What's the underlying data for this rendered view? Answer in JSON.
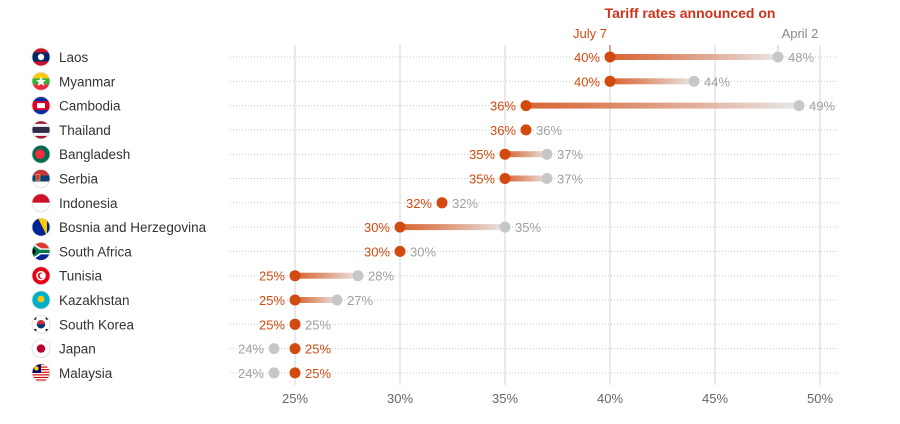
{
  "chart_data": {
    "type": "dot-plot",
    "title": "Tariff rates announced on",
    "series": [
      {
        "name": "July 7",
        "color": "#d24a0f"
      },
      {
        "name": "April 2",
        "color": "#c7c7c7"
      }
    ],
    "xlim": [
      20,
      52
    ],
    "xticks": [
      25,
      30,
      35,
      40,
      45,
      50
    ],
    "xtick_labels": [
      "25%",
      "30%",
      "35%",
      "40%",
      "45%",
      "50%"
    ],
    "rows": [
      {
        "country": "Laos",
        "flag": "laos-flag",
        "july7": 40,
        "april2": 48,
        "july7_label": "40%",
        "april2_label": "48%"
      },
      {
        "country": "Myanmar",
        "flag": "myanmar-flag",
        "july7": 40,
        "april2": 44,
        "july7_label": "40%",
        "april2_label": "44%"
      },
      {
        "country": "Cambodia",
        "flag": "cambodia-flag",
        "july7": 36,
        "april2": 49,
        "july7_label": "36%",
        "april2_label": "49%"
      },
      {
        "country": "Thailand",
        "flag": "thailand-flag",
        "july7": 36,
        "april2": 36,
        "july7_label": "36%",
        "april2_label": "36%"
      },
      {
        "country": "Bangladesh",
        "flag": "bangladesh-flag",
        "july7": 35,
        "april2": 37,
        "july7_label": "35%",
        "april2_label": "37%"
      },
      {
        "country": "Serbia",
        "flag": "serbia-flag",
        "july7": 35,
        "april2": 37,
        "july7_label": "35%",
        "april2_label": "37%"
      },
      {
        "country": "Indonesia",
        "flag": "indonesia-flag",
        "july7": 32,
        "april2": 32,
        "july7_label": "32%",
        "april2_label": "32%"
      },
      {
        "country": "Bosnia and Herzegovina",
        "flag": "bosnia-flag",
        "july7": 30,
        "april2": 35,
        "july7_label": "30%",
        "april2_label": "35%"
      },
      {
        "country": "South Africa",
        "flag": "south-africa-flag",
        "july7": 30,
        "april2": 30,
        "july7_label": "30%",
        "april2_label": "30%"
      },
      {
        "country": "Tunisia",
        "flag": "tunisia-flag",
        "july7": 25,
        "april2": 28,
        "july7_label": "25%",
        "april2_label": "28%"
      },
      {
        "country": "Kazakhstan",
        "flag": "kazakhstan-flag",
        "july7": 25,
        "april2": 27,
        "july7_label": "25%",
        "april2_label": "27%"
      },
      {
        "country": "South Korea",
        "flag": "south-korea-flag",
        "july7": 25,
        "april2": 25,
        "july7_label": "25%",
        "april2_label": "25%"
      },
      {
        "country": "Japan",
        "flag": "japan-flag",
        "july7": 25,
        "april2": 24,
        "july7_label": "25%",
        "april2_label": "24%"
      },
      {
        "country": "Malaysia",
        "flag": "malaysia-flag",
        "july7": 25,
        "april2": 24,
        "july7_label": "25%",
        "april2_label": "24%"
      }
    ]
  }
}
